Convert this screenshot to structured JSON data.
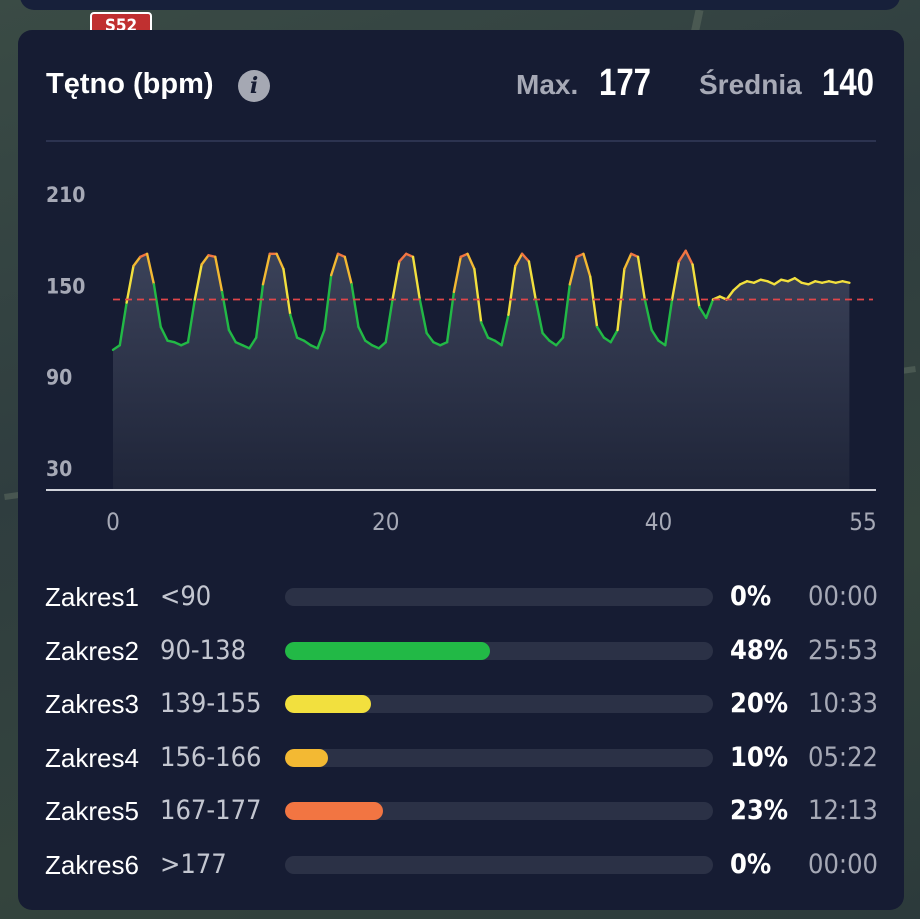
{
  "background": {
    "road_sign": "S52"
  },
  "header": {
    "title": "Tętno (bpm)",
    "info_icon": "info-icon",
    "max_label": "Max.",
    "max_value": "177",
    "avg_label": "Średnia",
    "avg_value": "140"
  },
  "chart_data": {
    "type": "line",
    "title": "Tętno (bpm)",
    "xlabel": "",
    "ylabel": "",
    "xlim": [
      0,
      55
    ],
    "ylim": [
      15,
      225
    ],
    "x_ticks": [
      "0",
      "20",
      "40",
      "55"
    ],
    "y_ticks": [
      "210",
      "150",
      "90",
      "30"
    ],
    "average_line": 140,
    "grid": false,
    "series": [
      {
        "x": [
          0,
          0.5,
          1,
          1.5,
          2,
          2.5,
          3,
          3.5,
          4,
          4.5,
          5,
          5.5,
          6,
          6.5,
          7,
          7.5,
          8,
          8.5,
          9,
          9.5,
          10,
          10.5,
          11,
          11.5,
          12,
          12.5,
          13,
          13.5,
          14,
          14.5,
          15,
          15.5,
          16,
          16.5,
          17,
          17.5,
          18,
          18.5,
          19,
          19.5,
          20,
          20.5,
          21,
          21.5,
          22,
          22.5,
          23,
          23.5,
          24,
          24.5,
          25,
          25.5,
          26,
          26.5,
          27,
          27.5,
          28,
          28.5,
          29,
          29.5,
          30,
          30.5,
          31,
          31.5,
          32,
          32.5,
          33,
          33.5,
          34,
          34.5,
          35,
          35.5,
          36,
          36.5,
          37,
          37.5,
          38,
          38.5,
          39,
          39.5,
          40,
          40.5,
          41,
          41.5,
          42,
          42.5,
          43,
          43.5,
          44,
          44.5,
          45,
          45.5,
          46,
          46.5,
          47,
          47.5,
          48,
          48.5,
          49,
          49.5,
          50,
          50.5,
          51,
          51.5,
          52,
          52.5,
          53,
          53.5,
          54
        ],
        "values": [
          107,
          110,
          138,
          162,
          168,
          170,
          150,
          122,
          113,
          112,
          110,
          112,
          140,
          163,
          169,
          168,
          145,
          120,
          112,
          110,
          108,
          115,
          150,
          170,
          170,
          160,
          130,
          115,
          113,
          110,
          108,
          120,
          156,
          170,
          168,
          150,
          122,
          113,
          110,
          108,
          112,
          140,
          165,
          170,
          168,
          140,
          118,
          112,
          110,
          112,
          145,
          168,
          170,
          160,
          125,
          115,
          113,
          110,
          130,
          162,
          170,
          165,
          140,
          118,
          113,
          110,
          115,
          150,
          168,
          170,
          155,
          122,
          115,
          112,
          120,
          160,
          170,
          168,
          140,
          120,
          113,
          110,
          140,
          165,
          172,
          163,
          135,
          128,
          140,
          142,
          140,
          146,
          150,
          152,
          151,
          153,
          152,
          150,
          153,
          152,
          154,
          151,
          150,
          152,
          151,
          152,
          151,
          152,
          151
        ]
      }
    ]
  },
  "zones": [
    {
      "name": "Zakres1",
      "range": "<90",
      "percent": "0%",
      "fraction": 0,
      "time": "00:00",
      "color": "#2bb843"
    },
    {
      "name": "Zakres2",
      "range": "90-138",
      "percent": "48%",
      "fraction": 0.48,
      "time": "25:53",
      "color": "#22b946"
    },
    {
      "name": "Zakres3",
      "range": "139-155",
      "percent": "20%",
      "fraction": 0.2,
      "time": "10:33",
      "color": "#f2e03e"
    },
    {
      "name": "Zakres4",
      "range": "156-166",
      "percent": "10%",
      "fraction": 0.1,
      "time": "05:22",
      "color": "#f3b933"
    },
    {
      "name": "Zakres5",
      "range": "167-177",
      "percent": "23%",
      "fraction": 0.23,
      "time": "12:13",
      "color": "#f27542"
    },
    {
      "name": "Zakres6",
      "range": ">177",
      "percent": "0%",
      "fraction": 0,
      "time": "00:00",
      "color": "#e0463c"
    }
  ]
}
